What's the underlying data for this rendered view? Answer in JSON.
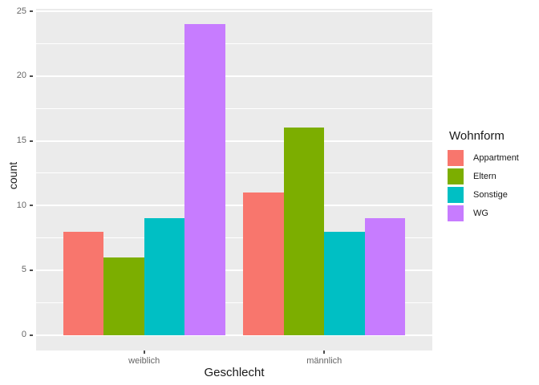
{
  "figure": {
    "background": "#FFFFFF",
    "panel_background": "#EBEBEB",
    "grid_color": "#FFFFFF",
    "tick_color": "#4D4D4D",
    "tick_label_color": "#666666",
    "axis_title_color": "#1A1A1A"
  },
  "chart_data": {
    "type": "bar",
    "mode": "grouped",
    "title": "",
    "xlabel": "Geschlecht",
    "ylabel": "count",
    "categories": [
      "weiblich",
      "männlich"
    ],
    "series": [
      {
        "name": "Appartment",
        "color": "#F8766D",
        "values": [
          8,
          11
        ]
      },
      {
        "name": "Eltern",
        "color": "#7CAE00",
        "values": [
          6,
          16
        ]
      },
      {
        "name": "Sonstige",
        "color": "#00BFC4",
        "values": [
          9,
          8
        ]
      },
      {
        "name": "WG",
        "color": "#C77CFF",
        "values": [
          24,
          9
        ]
      }
    ],
    "y_ticks": [
      0,
      5,
      10,
      15,
      20,
      25
    ],
    "y_minor_ticks": [
      2.5,
      7.5,
      12.5,
      17.5,
      22.5
    ],
    "ylim": [
      -1.2,
      25.2
    ],
    "grid": true,
    "legend": {
      "title": "Wohnform",
      "position": "right"
    }
  }
}
